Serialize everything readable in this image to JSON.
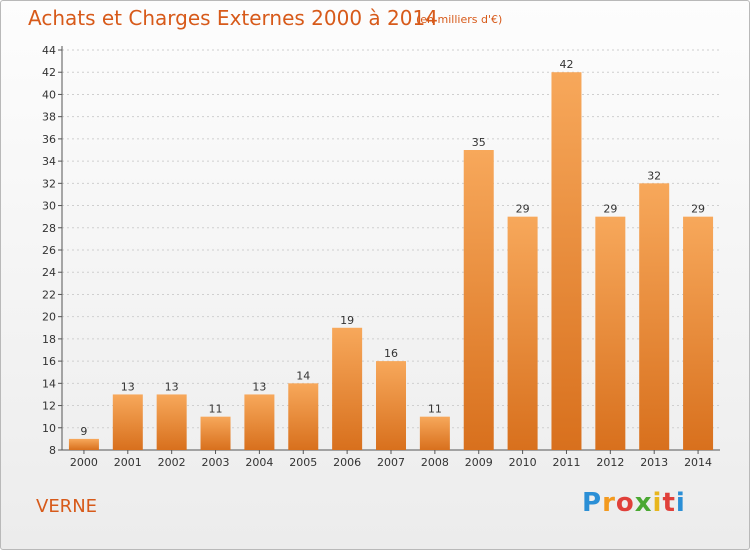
{
  "header": {
    "title": "Achats et Charges Externes 2000 à 2014",
    "subtitle": "(en milliers d'€)"
  },
  "footer": {
    "town": "VERNE",
    "logo_letters": [
      "P",
      "r",
      "o",
      "x",
      "i",
      "t",
      "i"
    ],
    "logo_colors": [
      "#2b8fd6",
      "#f39a1f",
      "#e0403a",
      "#4aa832",
      "#e8b61e",
      "#e0403a",
      "#2b8fd6"
    ]
  },
  "colors": {
    "accent": "#d75a1a",
    "bar_light": "#f7a85b",
    "bar_dark": "#d8701d"
  },
  "chart_data": {
    "type": "bar",
    "title": "Achats et Charges Externes 2000 à 2014",
    "subtitle": "(en milliers d'€)",
    "categories": [
      "2000",
      "2001",
      "2002",
      "2003",
      "2004",
      "2005",
      "2006",
      "2007",
      "2008",
      "2009",
      "2010",
      "2011",
      "2012",
      "2013",
      "2014"
    ],
    "values": [
      9,
      13,
      13,
      11,
      13,
      14,
      19,
      16,
      11,
      35,
      29,
      42,
      29,
      32,
      29
    ],
    "ylim": [
      8,
      44
    ],
    "yticks": [
      8,
      10,
      12,
      14,
      16,
      18,
      20,
      22,
      24,
      26,
      28,
      30,
      32,
      34,
      36,
      38,
      40,
      42,
      44
    ],
    "grid": true,
    "data_labels": true
  }
}
